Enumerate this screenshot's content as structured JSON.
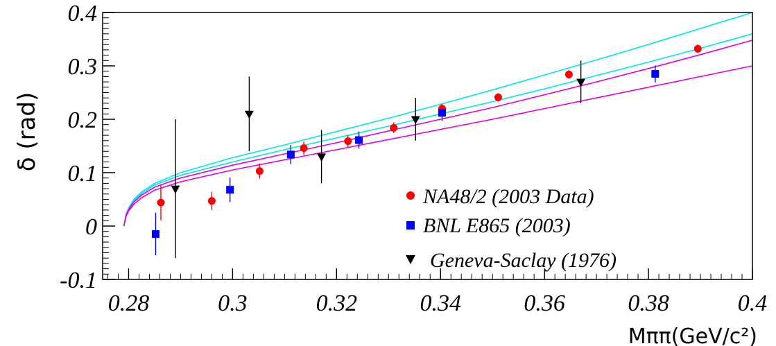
{
  "chart_data": {
    "type": "scatter",
    "title": "",
    "xlabel": "Mππ(GeV/c²)",
    "ylabel": "δ (rad)",
    "xlim": [
      0.275,
      0.4
    ],
    "ylim": [
      -0.1,
      0.4
    ],
    "x_ticks": [
      {
        "value": 0.28,
        "label": "0.28"
      },
      {
        "value": 0.3,
        "label": "0.3"
      },
      {
        "value": 0.32,
        "label": "0.32"
      },
      {
        "value": 0.34,
        "label": "0.34"
      },
      {
        "value": 0.36,
        "label": "0.36"
      },
      {
        "value": 0.38,
        "label": "0.38"
      },
      {
        "value": 0.4,
        "label": "0.4"
      }
    ],
    "y_ticks": [
      {
        "value": -0.1,
        "label": "-0.1"
      },
      {
        "value": 0.0,
        "label": "0"
      },
      {
        "value": 0.1,
        "label": "0.1"
      },
      {
        "value": 0.2,
        "label": "0.2"
      },
      {
        "value": 0.3,
        "label": "0.3"
      },
      {
        "value": 0.4,
        "label": "0.4"
      }
    ],
    "grid": false,
    "legend_position": "bottom-right",
    "series": [
      {
        "name": "NA48/2 (2003 Data)",
        "color": "#ff0000",
        "marker": "circle",
        "points": [
          {
            "x": 0.2862,
            "y": 0.044,
            "err": 0.033
          },
          {
            "x": 0.296,
            "y": 0.047,
            "err": 0.017
          },
          {
            "x": 0.3052,
            "y": 0.103,
            "err": 0.014
          },
          {
            "x": 0.3137,
            "y": 0.146,
            "err": 0.012
          },
          {
            "x": 0.3222,
            "y": 0.159,
            "err": 0.011
          },
          {
            "x": 0.331,
            "y": 0.184,
            "err": 0.01
          },
          {
            "x": 0.3403,
            "y": 0.22,
            "err": 0.009
          },
          {
            "x": 0.3511,
            "y": 0.241,
            "err": 0.008
          },
          {
            "x": 0.3647,
            "y": 0.284,
            "err": 0.008
          },
          {
            "x": 0.3895,
            "y": 0.332,
            "err": 0.008
          }
        ]
      },
      {
        "name": "BNL E865 (2003)",
        "color": "#0000ff",
        "marker": "square",
        "points": [
          {
            "x": 0.2852,
            "y": -0.015,
            "err": 0.04
          },
          {
            "x": 0.2995,
            "y": 0.068,
            "err": 0.023
          },
          {
            "x": 0.3112,
            "y": 0.134,
            "err": 0.018
          },
          {
            "x": 0.3243,
            "y": 0.161,
            "err": 0.016
          },
          {
            "x": 0.3403,
            "y": 0.212,
            "err": 0.015
          },
          {
            "x": 0.3813,
            "y": 0.285,
            "err": 0.016
          }
        ]
      },
      {
        "name": "Geneva-Saclay (1976)",
        "color": "#000000",
        "marker": "triangle-down",
        "points": [
          {
            "x": 0.289,
            "y": 0.07,
            "err": 0.13
          },
          {
            "x": 0.3032,
            "y": 0.21,
            "err": 0.07
          },
          {
            "x": 0.3171,
            "y": 0.13,
            "err": 0.05
          },
          {
            "x": 0.3352,
            "y": 0.2,
            "err": 0.04
          },
          {
            "x": 0.367,
            "y": 0.27,
            "err": 0.04
          }
        ]
      }
    ],
    "curves": [
      {
        "color": "#00e5e5",
        "x": [
          0.2791,
          0.2795,
          0.28,
          0.281,
          0.2825,
          0.285,
          0.29,
          0.3,
          0.31,
          0.32,
          0.33,
          0.34,
          0.35,
          0.36,
          0.37,
          0.38,
          0.39,
          0.4
        ],
        "y": [
          0.0,
          0.02,
          0.032,
          0.047,
          0.061,
          0.077,
          0.095,
          0.12,
          0.143,
          0.165,
          0.187,
          0.21,
          0.233,
          0.257,
          0.282,
          0.307,
          0.333,
          0.36
        ]
      },
      {
        "color": "#00e5e5",
        "x": [
          0.2791,
          0.2795,
          0.28,
          0.281,
          0.2825,
          0.285,
          0.29,
          0.3,
          0.31,
          0.32,
          0.33,
          0.34,
          0.35,
          0.36,
          0.37,
          0.38,
          0.39,
          0.4
        ],
        "y": [
          0.0,
          0.022,
          0.034,
          0.05,
          0.064,
          0.08,
          0.1,
          0.128,
          0.152,
          0.177,
          0.202,
          0.228,
          0.255,
          0.283,
          0.311,
          0.34,
          0.37,
          0.4
        ]
      },
      {
        "color": "#e000e0",
        "x": [
          0.2791,
          0.2795,
          0.28,
          0.281,
          0.2825,
          0.285,
          0.29,
          0.3,
          0.31,
          0.32,
          0.33,
          0.34,
          0.35,
          0.36,
          0.37,
          0.38,
          0.39,
          0.4
        ],
        "y": [
          0.0,
          0.018,
          0.028,
          0.041,
          0.053,
          0.067,
          0.083,
          0.105,
          0.124,
          0.143,
          0.162,
          0.181,
          0.2,
          0.22,
          0.24,
          0.26,
          0.28,
          0.3
        ]
      },
      {
        "color": "#e000e0",
        "x": [
          0.2791,
          0.2795,
          0.28,
          0.281,
          0.2825,
          0.285,
          0.29,
          0.3,
          0.31,
          0.32,
          0.33,
          0.34,
          0.35,
          0.36,
          0.37,
          0.38,
          0.39,
          0.4
        ],
        "y": [
          0.0,
          0.02,
          0.031,
          0.045,
          0.058,
          0.073,
          0.09,
          0.114,
          0.135,
          0.156,
          0.178,
          0.2,
          0.222,
          0.246,
          0.27,
          0.295,
          0.321,
          0.348
        ]
      }
    ]
  }
}
